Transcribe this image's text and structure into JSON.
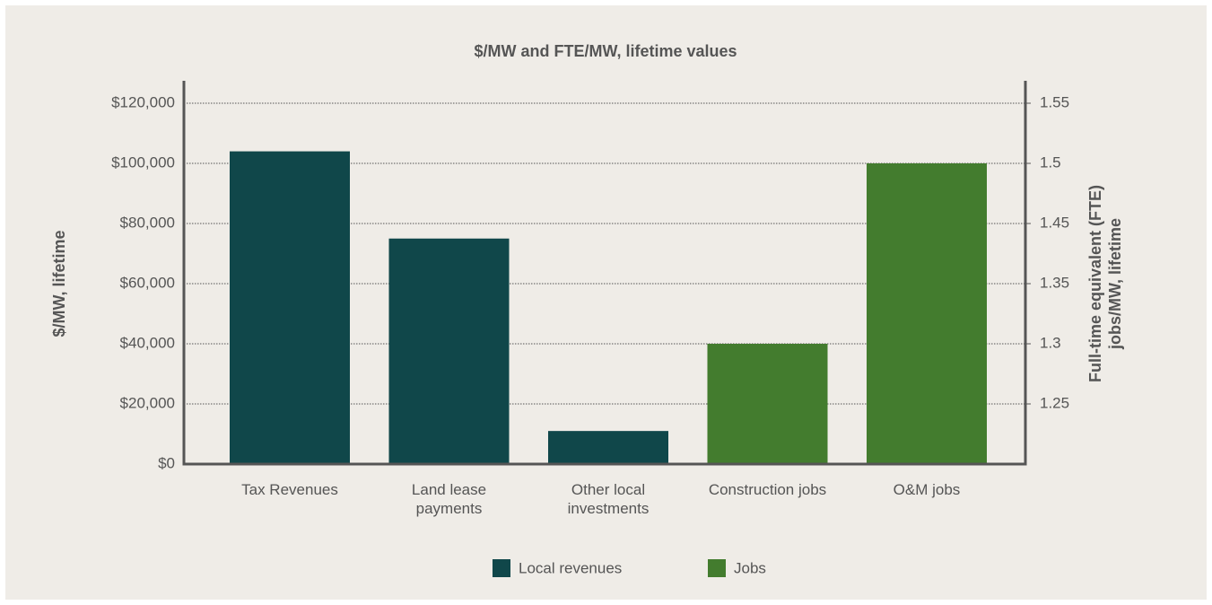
{
  "chart_data": {
    "type": "bar",
    "title": "$/MW and FTE/MW, lifetime values",
    "categories": [
      "Tax Revenues",
      "Land lease payments",
      "Other local investments",
      "Construction jobs",
      "O&M jobs"
    ],
    "series": [
      {
        "name": "Local revenues",
        "color": "#10474a",
        "axis": "y",
        "values": [
          104000,
          75000,
          11000,
          null,
          null
        ]
      },
      {
        "name": "Jobs",
        "color": "#437c2e",
        "axis": "y2",
        "values": [
          null,
          null,
          null,
          1.3,
          1.5
        ]
      }
    ],
    "ylabel": "$/MW, lifetime",
    "y2label": "Full-time equivalent (FTE) jobs/MW, lifetime",
    "ylim": [
      0,
      120000
    ],
    "yticks": [
      {
        "value": 0,
        "label": "$0"
      },
      {
        "value": 20000,
        "label": "$20,000"
      },
      {
        "value": 40000,
        "label": "$40,000"
      },
      {
        "value": 60000,
        "label": "$60,000"
      },
      {
        "value": 80000,
        "label": "$80,000"
      },
      {
        "value": 100000,
        "label": "$100,000"
      },
      {
        "value": 120000,
        "label": "$120,000"
      }
    ],
    "y2lim": [
      1.2,
      1.55
    ],
    "y2ticks": [
      1.25,
      1.3,
      1.35,
      1.45,
      1.5,
      1.55
    ],
    "grid": true,
    "legend": "bottom"
  }
}
